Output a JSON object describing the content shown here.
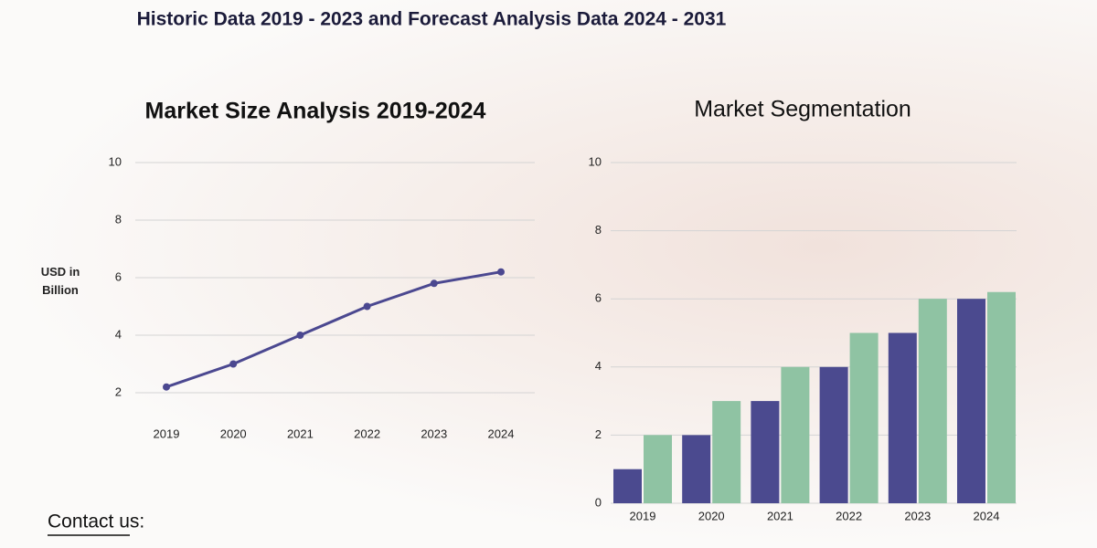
{
  "header": {
    "title": "Historic Data 2019 - 2023 and Forecast Analysis Data 2024 - 2031"
  },
  "footer": {
    "contact": "Contact us:"
  },
  "chart_data": [
    {
      "type": "line",
      "title": "Market Size Analysis 2019-2024",
      "y_label": "USD in Billion",
      "categories": [
        "2019",
        "2020",
        "2021",
        "2022",
        "2023",
        "2024"
      ],
      "values": [
        2.2,
        3,
        4,
        5,
        5.8,
        6.2
      ],
      "color": "#4b4890",
      "ylim": [
        2,
        10
      ],
      "yticks": [
        2,
        4,
        6,
        8,
        10
      ],
      "grid": true
    },
    {
      "type": "bar",
      "title": "Market Segmentation",
      "categories": [
        "2019",
        "2020",
        "2021",
        "2022",
        "2023",
        "2024"
      ],
      "series": [
        {
          "color": "#4b4a8f",
          "values": [
            1,
            2,
            3,
            4,
            5,
            6
          ]
        },
        {
          "color": "#8fc3a3",
          "values": [
            2,
            3,
            4,
            5,
            6,
            6.2
          ]
        }
      ],
      "ylim": [
        0,
        10
      ],
      "yticks": [
        0,
        2,
        4,
        6,
        8,
        10
      ],
      "grid": true
    }
  ]
}
